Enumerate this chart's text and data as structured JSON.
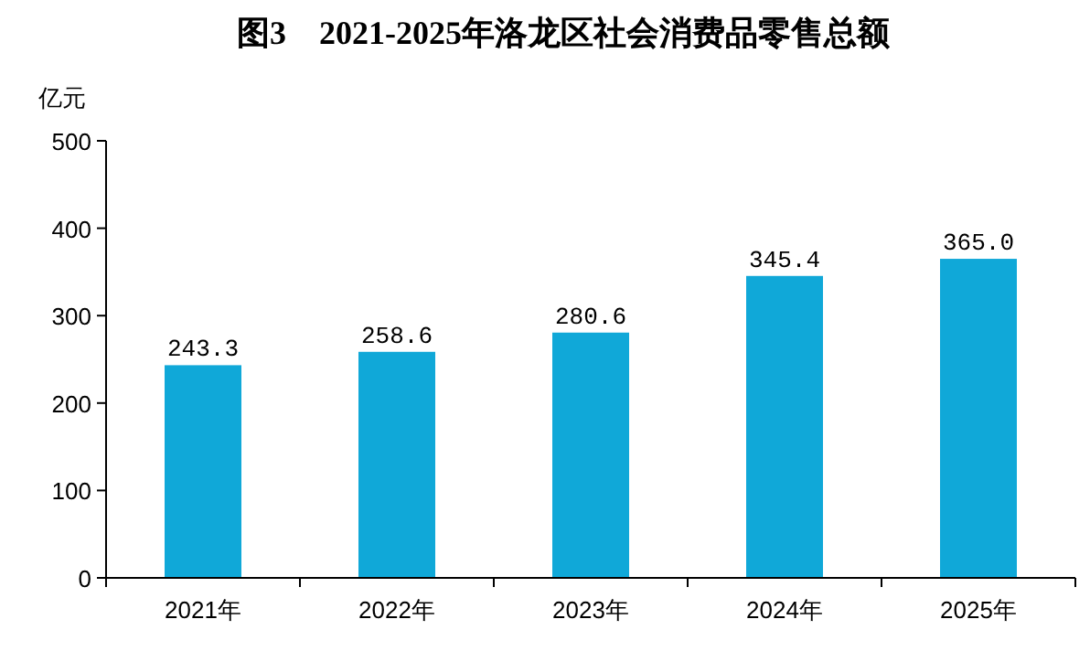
{
  "chart_data": {
    "type": "bar",
    "title": "图3　2021-2025年洛龙区社会消费品零售总额",
    "ylabel": "亿元",
    "categories": [
      "2021年",
      "2022年",
      "2023年",
      "2024年",
      "2025年"
    ],
    "values": [
      243.3,
      258.6,
      280.6,
      345.4,
      365.0
    ],
    "value_labels": [
      "243.3",
      "258.6",
      "280.6",
      "345.4",
      "365.0"
    ],
    "color": "#10a8d8",
    "ylim": [
      0,
      500
    ],
    "yticks": [
      0,
      100,
      200,
      300,
      400,
      500
    ],
    "grid": false
  }
}
